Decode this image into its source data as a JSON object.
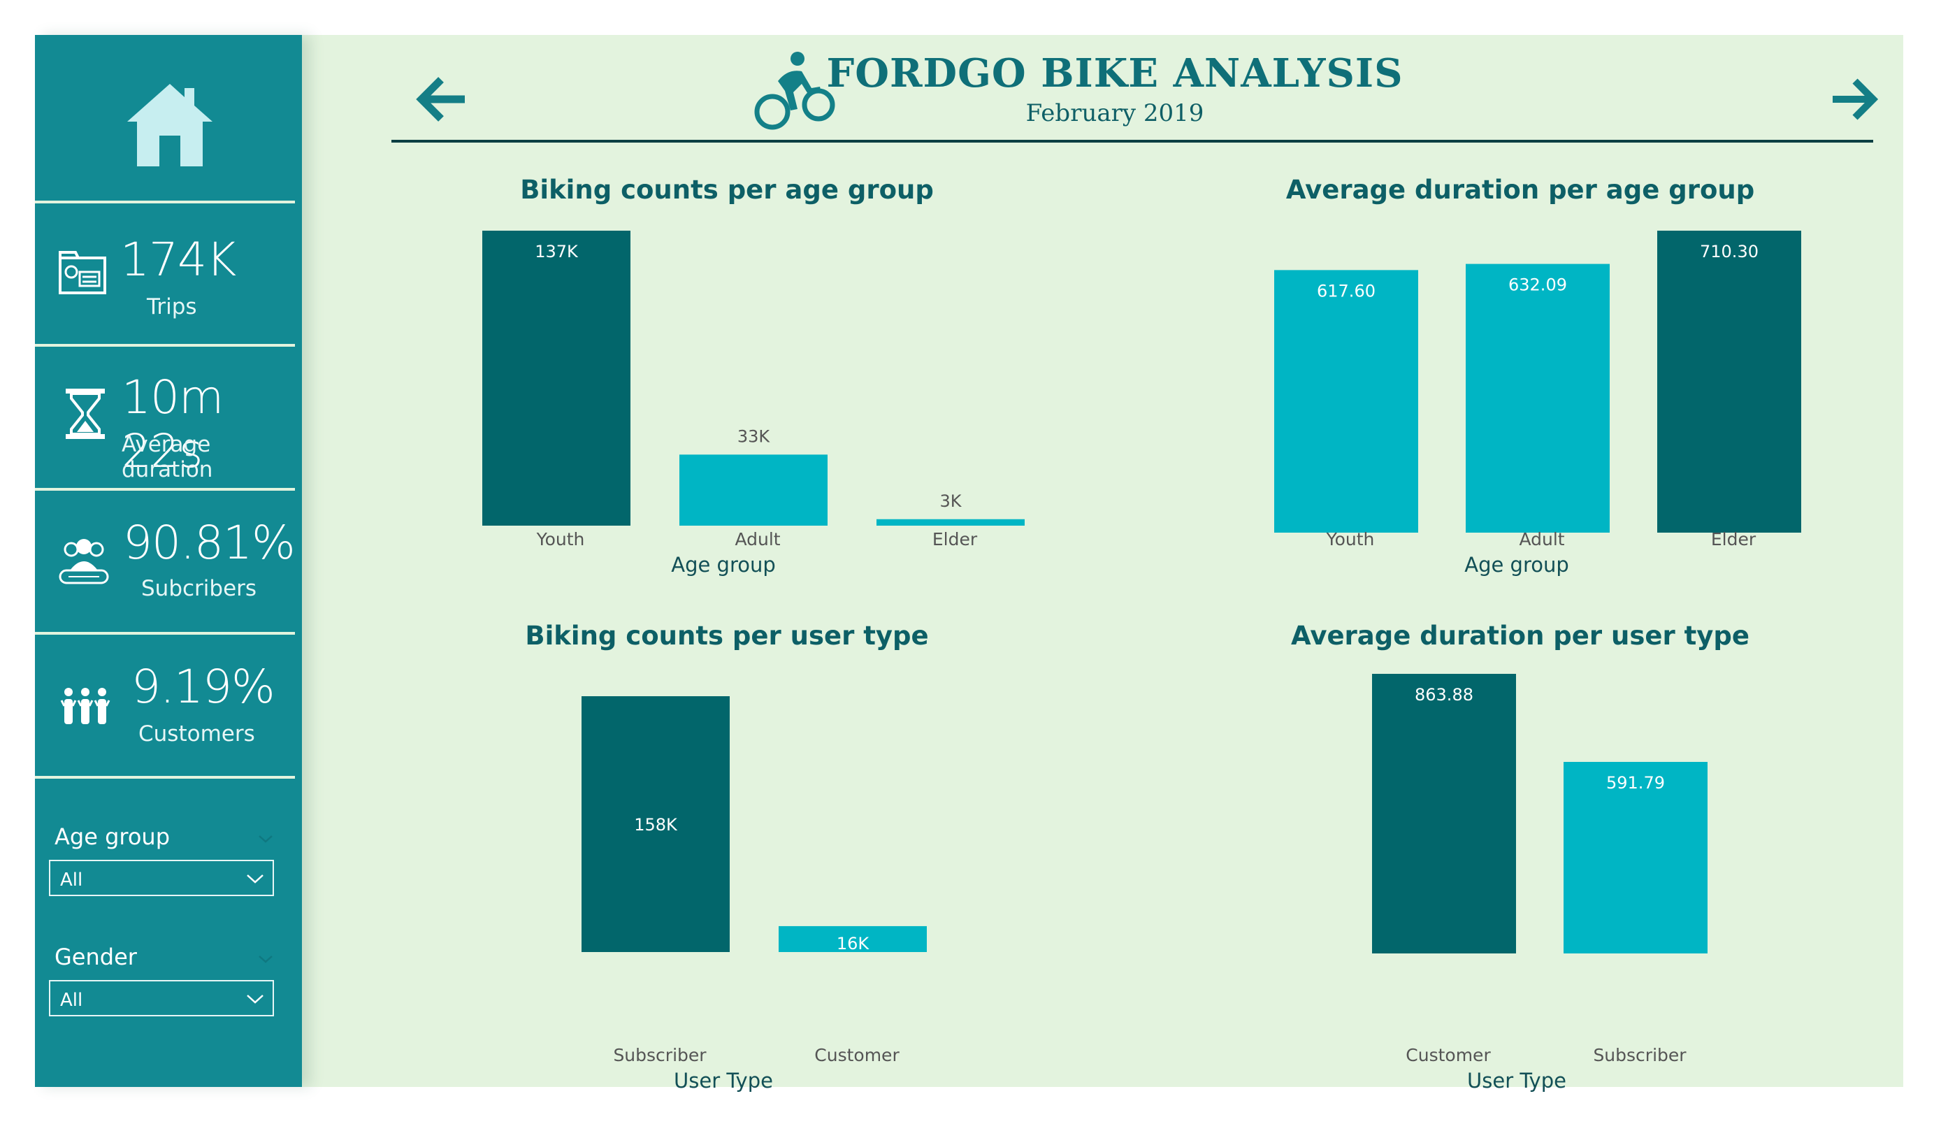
{
  "header": {
    "title": "FORDGO BIKE ANALYSIS",
    "subtitle": "February 2019",
    "icons": {
      "back": "arrow-left-icon",
      "forward": "arrow-right-icon",
      "logo": "cyclist-icon"
    }
  },
  "sidebar": {
    "home_icon": "home-icon",
    "kpis": [
      {
        "value": "174K",
        "label": "Trips",
        "icon": "ticket-icon"
      },
      {
        "value": "10m 22s",
        "label": "Average duration",
        "icon": "hourglass-icon"
      },
      {
        "value": "90.81%",
        "label": "Subcribers",
        "icon": "subscriber-group-icon"
      },
      {
        "value": "9.19%",
        "label": "Customers",
        "icon": "customers-icon"
      }
    ],
    "slicers": [
      {
        "title": "Age group",
        "value": "All"
      },
      {
        "title": "Gender",
        "value": "All"
      }
    ]
  },
  "colors": {
    "sidebar": "#128a93",
    "background": "#e3f3de",
    "dark_bar": "#02666b",
    "light_bar": "#00b5c4",
    "title": "#0f6f78"
  },
  "chart_data": [
    {
      "type": "bar",
      "title": "Biking counts per age group",
      "xlabel": "Age group",
      "ylabel": "",
      "categories": [
        "Youth",
        "Adult",
        "Elder"
      ],
      "values": [
        137000,
        33000,
        3000
      ],
      "labels": [
        "137K",
        "33K",
        "3K"
      ],
      "highlight": [
        true,
        false,
        false
      ],
      "ylim": [
        0,
        137000
      ]
    },
    {
      "type": "bar",
      "title": "Average duration per age group",
      "xlabel": "Age group",
      "ylabel": "",
      "categories": [
        "Youth",
        "Adult",
        "Elder"
      ],
      "values": [
        617.6,
        632.09,
        710.3
      ],
      "labels": [
        "617.60",
        "632.09",
        "710.30"
      ],
      "highlight": [
        false,
        false,
        true
      ],
      "ylim": [
        0,
        710.3
      ]
    },
    {
      "type": "bar",
      "title": "Biking counts per user type",
      "xlabel": "User Type",
      "ylabel": "",
      "categories": [
        "Subscriber",
        "Customer"
      ],
      "values": [
        158000,
        16000
      ],
      "labels": [
        "158K",
        "16K"
      ],
      "highlight": [
        true,
        false
      ],
      "ylim": [
        0,
        158000
      ]
    },
    {
      "type": "bar",
      "title": "Average duration per user type",
      "xlabel": "User Type",
      "ylabel": "",
      "categories": [
        "Customer",
        "Subscriber"
      ],
      "values": [
        863.88,
        591.79
      ],
      "labels": [
        "863.88",
        "591.79"
      ],
      "highlight": [
        true,
        false
      ],
      "ylim": [
        0,
        863.88
      ]
    }
  ]
}
